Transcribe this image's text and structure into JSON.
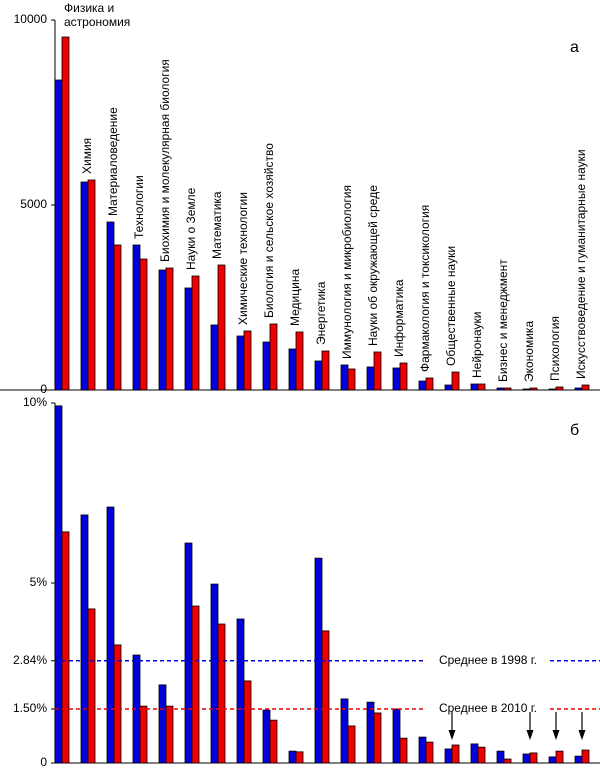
{
  "chart_data": [
    {
      "type": "bar",
      "panel_label": "а",
      "categories": [
        "Физика и астрономия",
        "Химия",
        "Материаловедение",
        "Технологии",
        "Биохимия и молекулярная биология",
        "Науки о Земле",
        "Математика",
        "Химические технологии",
        "Биология и сельское хозяйство",
        "Медицина",
        "Энергетика",
        "Иммунология и микробиология",
        "Науки об окружающей среде",
        "Информатика",
        "Фармакология и токсикология",
        "Общественные науки",
        "Нейронауки",
        "Бизнес и менеджмент",
        "Экономика",
        "Психология",
        "Искусствоведение и гуманитарные науки"
      ],
      "series": [
        {
          "color": "#0000dd",
          "values": [
            8378,
            5622,
            4540,
            3919,
            3243,
            2757,
            1757,
            1459,
            1297,
            1108,
            784,
            676,
            622,
            595,
            243,
            135,
            162,
            54,
            27,
            27,
            54
          ]
        },
        {
          "color": "#ee0000",
          "values": [
            9540,
            5676,
            3919,
            3540,
            3297,
            3081,
            3378,
            1595,
            1784,
            1568,
            1054,
            568,
            1027,
            730,
            324,
            486,
            162,
            54,
            54,
            81,
            135
          ]
        }
      ],
      "ylim": [
        0,
        10000
      ],
      "yticks": [
        0,
        5000,
        10000
      ]
    },
    {
      "type": "bar",
      "panel_label": "б",
      "series": [
        {
          "color": "#0000dd",
          "values": [
            9.92,
            6.89,
            7.11,
            3.0,
            2.17,
            6.11,
            4.97,
            4.0,
            1.47,
            0.33,
            5.69,
            1.78,
            1.69,
            1.5,
            0.72,
            0.39,
            0.53,
            0.33,
            0.25,
            0.17,
            0.19
          ]
        },
        {
          "color": "#ee0000",
          "values": [
            6.42,
            4.28,
            3.28,
            1.58,
            1.58,
            4.36,
            3.86,
            2.28,
            1.19,
            0.31,
            3.67,
            1.03,
            1.39,
            0.69,
            0.58,
            0.5,
            0.44,
            0.11,
            0.28,
            0.33,
            0.36
          ]
        }
      ],
      "ylim": [
        0,
        10
      ],
      "yticks": [
        0,
        {
          "value": 1.5,
          "label": "1.50%"
        },
        {
          "value": 2.84,
          "label": "2.84%"
        },
        {
          "value": 5,
          "label": "5%"
        },
        {
          "value": 10,
          "label": "10%"
        }
      ],
      "reference_lines": [
        {
          "value": 2.84,
          "label": "Среднее в 1998 г.",
          "color": "#0000dd"
        },
        {
          "value": 1.5,
          "label": "Среднее в 2010 г.",
          "color": "#ee0000"
        }
      ]
    }
  ]
}
